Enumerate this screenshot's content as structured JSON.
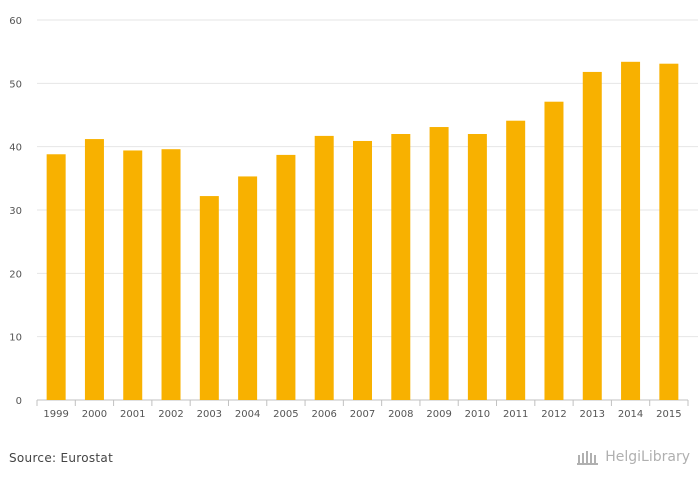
{
  "chart_data": {
    "type": "bar",
    "categories": [
      "1999",
      "2000",
      "2001",
      "2002",
      "2003",
      "2004",
      "2005",
      "2006",
      "2007",
      "2008",
      "2009",
      "2010",
      "2011",
      "2012",
      "2013",
      "2014",
      "2015"
    ],
    "values": [
      38.8,
      41.2,
      39.4,
      39.6,
      32.2,
      35.3,
      38.7,
      41.7,
      40.9,
      42.0,
      43.1,
      42.0,
      44.1,
      47.1,
      51.8,
      53.4,
      53.1
    ],
    "yticks": [
      0,
      10,
      20,
      30,
      40,
      50,
      60
    ],
    "ylim": [
      0,
      60
    ],
    "grid": true,
    "bar_color": "#f8b100"
  },
  "footer": {
    "source": "Source: Eurostat",
    "brand": "HelgiLibrary"
  },
  "colors": {
    "grid": "#e6e6e6",
    "axis": "#c0c0c0",
    "brand": "#b0b0b0"
  }
}
